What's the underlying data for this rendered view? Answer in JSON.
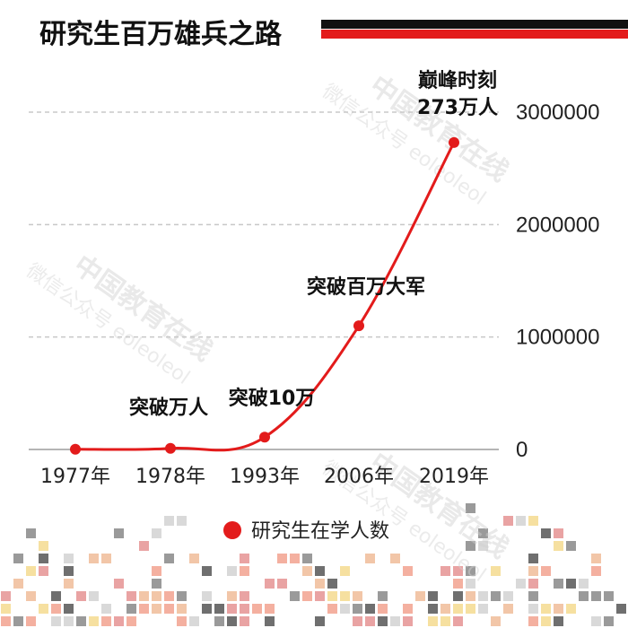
{
  "header": {
    "title": "研究生百万雄兵之路",
    "bar_colors": [
      "#111111",
      "#e31b1b"
    ]
  },
  "watermarks": [
    {
      "line1": "中国教育在线",
      "line2": "微信公众号 eoleoleol"
    },
    {
      "line1": "中国教育在线",
      "line2": "微信公众号 eoleoleol"
    },
    {
      "line1": "中国教育在线",
      "line2": "微信公众号 eoleoleol"
    }
  ],
  "chart_data": {
    "type": "line",
    "title": "研究生百万雄兵之路",
    "categories": [
      "1977年",
      "1978年",
      "1993年",
      "2006年",
      "2019年"
    ],
    "series": [
      {
        "name": "研究生在学人数",
        "values": [
          2000,
          10000,
          110000,
          1100000,
          2730000
        ],
        "color": "#e31b1b"
      }
    ],
    "ylim": [
      0,
      3000000
    ],
    "yticks": [
      0,
      1000000,
      2000000,
      3000000
    ],
    "ytick_labels": [
      "0",
      "1000000",
      "2000000",
      "3000000"
    ],
    "y_axis_side": "right",
    "grid": "horizontal dashed",
    "annotations": [
      {
        "category": "1978年",
        "lines": [
          "突破万人"
        ]
      },
      {
        "category": "1993年",
        "lines": [
          "突破10万"
        ]
      },
      {
        "category": "2006年",
        "lines": [
          "突破百万大军"
        ]
      },
      {
        "category": "2019年",
        "lines": [
          "巅峰时刻",
          "273万人"
        ]
      }
    ],
    "legend": {
      "label": "研究生在学人数",
      "position": "bottom-center"
    }
  },
  "decor": {
    "pixel_colors": [
      "#f2c6a8",
      "#e9a3a3",
      "#f6e0a0",
      "#9a9a9a",
      "#d9d9d9",
      "#f4b0a0",
      "#6f6f6f"
    ]
  }
}
